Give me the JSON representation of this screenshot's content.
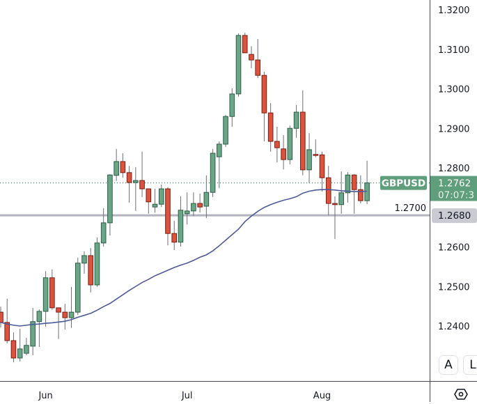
{
  "chart_data": {
    "type": "candlestick",
    "symbol": "GBPUSD",
    "last_price": "1.2762",
    "countdown": "07:07:3",
    "horizontal_line_price": "1.2680",
    "ylim": [
      1.232,
      1.3225
    ],
    "y_ticks": [
      "1.2400",
      "1.2500",
      "1.2600",
      "1.2700",
      "1.2800",
      "1.2900",
      "1.3000",
      "1.3100",
      "1.3200"
    ],
    "x_labels": [
      {
        "label": "Jun",
        "index": 7
      },
      {
        "label": "Jul",
        "index": 29
      },
      {
        "label": "Aug",
        "index": 50
      }
    ],
    "colors": {
      "up": "#6ba587",
      "up_border": "#2d5e45",
      "down": "#d9533f",
      "down_border": "#7c1d12",
      "ma": "#4c5a9a",
      "hline": "#b2b5be",
      "label_green": "#5f9e7b",
      "label_gray": "#c9cbd1"
    },
    "ohlc": [
      [
        1.2435,
        1.2449,
        1.2396,
        1.2409
      ],
      [
        1.2409,
        1.2469,
        1.2356,
        1.2363
      ],
      [
        1.2363,
        1.2384,
        1.2308,
        1.2319
      ],
      [
        1.2319,
        1.2393,
        1.231,
        1.2342
      ],
      [
        1.2331,
        1.237,
        1.2326,
        1.2351
      ],
      [
        1.2349,
        1.2446,
        1.2326,
        1.2411
      ],
      [
        1.2411,
        1.2442,
        1.2347,
        1.2437
      ],
      [
        1.2437,
        1.2539,
        1.2398,
        1.2522
      ],
      [
        1.2522,
        1.2543,
        1.2441,
        1.2446
      ],
      [
        1.2446,
        1.2446,
        1.2367,
        1.2435
      ],
      [
        1.2435,
        1.2456,
        1.2391,
        1.2421
      ],
      [
        1.2421,
        1.2499,
        1.2395,
        1.2435
      ],
      [
        1.2435,
        1.2573,
        1.2428,
        1.2559
      ],
      [
        1.2559,
        1.2589,
        1.2532,
        1.2578
      ],
      [
        1.2578,
        1.2597,
        1.2485,
        1.2504
      ],
      [
        1.2504,
        1.2624,
        1.2499,
        1.261
      ],
      [
        1.261,
        1.2698,
        1.2601,
        1.2661
      ],
      [
        1.2661,
        1.2784,
        1.2629,
        1.2782
      ],
      [
        1.2781,
        1.2848,
        1.2767,
        1.2816
      ],
      [
        1.2816,
        1.2837,
        1.2775,
        1.2788
      ],
      [
        1.2788,
        1.2805,
        1.2712,
        1.2763
      ],
      [
        1.2763,
        1.2802,
        1.2691,
        1.2768
      ],
      [
        1.2768,
        1.2841,
        1.2726,
        1.2747
      ],
      [
        1.2747,
        1.2747,
        1.2684,
        1.2714
      ],
      [
        1.2701,
        1.2747,
        1.2687,
        1.2708
      ],
      [
        1.2708,
        1.2758,
        1.2701,
        1.2747
      ],
      [
        1.2747,
        1.2751,
        1.2604,
        1.2634
      ],
      [
        1.2634,
        1.2666,
        1.2592,
        1.2612
      ],
      [
        1.2612,
        1.2728,
        1.2601,
        1.2693
      ],
      [
        1.2684,
        1.2738,
        1.2657,
        1.2691
      ],
      [
        1.2691,
        1.2738,
        1.2678,
        1.271
      ],
      [
        1.271,
        1.2735,
        1.2687,
        1.2701
      ],
      [
        1.2703,
        1.2781,
        1.2673,
        1.2738
      ],
      [
        1.2738,
        1.2848,
        1.2726,
        1.2837
      ],
      [
        1.2828,
        1.2867,
        1.2749,
        1.286
      ],
      [
        1.286,
        1.2934,
        1.2853,
        1.293
      ],
      [
        1.293,
        1.3001,
        1.2904,
        1.2987
      ],
      [
        1.2987,
        1.314,
        1.298,
        1.3135
      ],
      [
        1.3135,
        1.3142,
        1.3091,
        1.3091
      ],
      [
        1.3087,
        1.3108,
        1.3052,
        1.3073
      ],
      [
        1.3073,
        1.3126,
        1.3027,
        1.3034
      ],
      [
        1.3034,
        1.3043,
        1.2867,
        1.2939
      ],
      [
        1.2939,
        1.2964,
        1.2841,
        1.2867
      ],
      [
        1.2867,
        1.2904,
        1.2814,
        1.2851
      ],
      [
        1.2848,
        1.2883,
        1.2796,
        1.2821
      ],
      [
        1.2821,
        1.2907,
        1.2809,
        1.29
      ],
      [
        1.29,
        1.2959,
        1.2876,
        1.2941
      ],
      [
        1.2941,
        1.2996,
        1.2781,
        1.2795
      ],
      [
        1.2795,
        1.2888,
        1.2761,
        1.2846
      ],
      [
        1.2834,
        1.2872,
        1.2827,
        1.2833
      ],
      [
        1.2833,
        1.2841,
        1.274,
        1.2775
      ],
      [
        1.2775,
        1.2805,
        1.268,
        1.271
      ],
      [
        1.271,
        1.2728,
        1.262,
        1.2707
      ],
      [
        1.2707,
        1.2791,
        1.2684,
        1.2737
      ],
      [
        1.2737,
        1.2789,
        1.2712,
        1.2782
      ],
      [
        1.2782,
        1.2784,
        1.2684,
        1.2745
      ],
      [
        1.2745,
        1.2781,
        1.271,
        1.2717
      ],
      [
        1.2717,
        1.2818,
        1.2708,
        1.2762
      ]
    ],
    "moving_average": [
      1.2409,
      1.2405,
      1.2402,
      1.24,
      1.2402,
      1.2404,
      1.2405,
      1.2407,
      1.2408,
      1.241,
      1.2412,
      1.2416,
      1.2422,
      1.2427,
      1.2432,
      1.244,
      1.2449,
      1.2457,
      1.2468,
      1.2479,
      1.249,
      1.25,
      1.251,
      1.2518,
      1.2527,
      1.2534,
      1.2541,
      1.2548,
      1.2554,
      1.2559,
      1.2566,
      1.2574,
      1.258,
      1.259,
      1.2603,
      1.2617,
      1.2631,
      1.2645,
      1.2664,
      1.2678,
      1.269,
      1.27,
      1.2707,
      1.2713,
      1.2718,
      1.2722,
      1.2727,
      1.2736,
      1.2741,
      1.2744,
      1.2745,
      1.2745,
      1.2744,
      1.2742,
      1.2741,
      1.274,
      1.274,
      1.2741
    ]
  },
  "controls": {
    "auto_label": "A",
    "log_label": "L",
    "settings_icon": "hexagon-settings-icon"
  }
}
